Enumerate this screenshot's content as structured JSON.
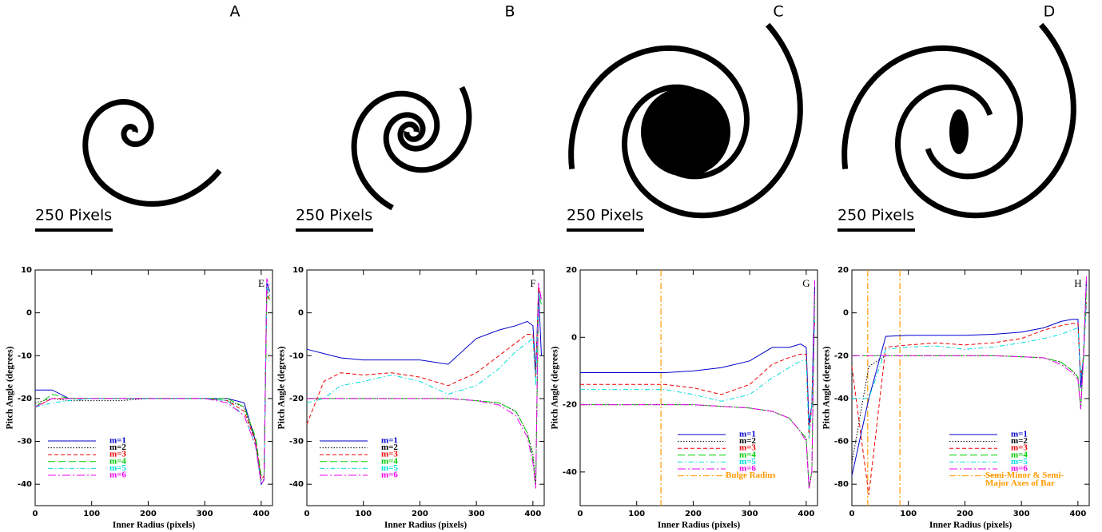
{
  "panels": [
    {
      "label": "A",
      "scale_label": "250 Pixels"
    },
    {
      "label": "B",
      "scale_label": "250 Pixels"
    },
    {
      "label": "C",
      "scale_label": "250 Pixels"
    },
    {
      "label": "D",
      "scale_label": "250 Pixels"
    }
  ],
  "chart_data": [
    {
      "type": "line",
      "label": "E",
      "xlabel": "Inner Radius (pixels)",
      "ylabel": "Pitch Angle (degrees)",
      "xlim": [
        0,
        420
      ],
      "ylim": [
        -45,
        10
      ],
      "xticks": [
        0,
        100,
        200,
        300,
        400
      ],
      "yticks": [
        -40,
        -30,
        -20,
        -10,
        0,
        10
      ],
      "legend": "lower left",
      "x": [
        0,
        30,
        60,
        100,
        150,
        200,
        250,
        300,
        340,
        370,
        390,
        400,
        405,
        410,
        415
      ],
      "series": [
        {
          "name": "m=1",
          "color": "#0000cc",
          "style": "solid",
          "values": [
            -18,
            -18,
            -20,
            -20,
            -20,
            -20,
            -20,
            -20,
            -20,
            -21,
            -30,
            -40,
            -39,
            7,
            5
          ]
        },
        {
          "name": "m=2",
          "color": "#000000",
          "style": "dotted",
          "values": [
            -21,
            -20,
            -20.5,
            -20.5,
            -20.5,
            -20,
            -20,
            -20,
            -20.5,
            -22,
            -30,
            -39,
            -39,
            6,
            4
          ]
        },
        {
          "name": "m=3",
          "color": "#ee0000",
          "style": "dashed",
          "values": [
            -22,
            -20,
            -20,
            -20,
            -20,
            -20,
            -20,
            -20,
            -20.5,
            -23,
            -30,
            -39,
            -38,
            5,
            3
          ]
        },
        {
          "name": "m=4",
          "color": "#00cc00",
          "style": "longdash",
          "values": [
            -22,
            -19,
            -20,
            -20,
            -20,
            -20,
            -20,
            -20,
            -20,
            -22,
            -29,
            -38,
            -38,
            4,
            3
          ]
        },
        {
          "name": "m=5",
          "color": "#00dddd",
          "style": "dashdot",
          "values": [
            -22,
            -21,
            -20.5,
            -20,
            -20,
            -20,
            -20,
            -20,
            -20.5,
            -24,
            -31,
            -40,
            -39,
            6,
            4
          ]
        },
        {
          "name": "m=6",
          "color": "#ee00ee",
          "style": "longdashdot",
          "values": [
            -22,
            -20,
            -20,
            -20,
            -20,
            -20,
            -20,
            -20,
            -21,
            -24,
            -31,
            -40,
            -39,
            8,
            6
          ]
        }
      ]
    },
    {
      "type": "line",
      "label": "F",
      "xlabel": "Inner Radius (pixels)",
      "ylabel": "Pitch Angle (degrees)",
      "xlim": [
        0,
        420
      ],
      "ylim": [
        -45,
        10
      ],
      "xticks": [
        0,
        100,
        200,
        300,
        400
      ],
      "yticks": [
        -40,
        -30,
        -20,
        -10,
        0,
        10
      ],
      "legend": "lower left",
      "x": [
        0,
        30,
        60,
        100,
        150,
        200,
        250,
        300,
        340,
        370,
        390,
        400,
        405,
        410,
        415
      ],
      "series": [
        {
          "name": "m=1",
          "color": "#0000cc",
          "style": "solid",
          "values": [
            -8.5,
            -9.5,
            -10.5,
            -11,
            -11,
            -11,
            -12,
            -6,
            -4,
            -3,
            -2,
            -3,
            -14,
            5,
            -10
          ]
        },
        {
          "name": "m=2",
          "color": "#000000",
          "style": "dotted",
          "values": [
            -20,
            -20,
            -20,
            -20,
            -20,
            -20,
            -20,
            -20.5,
            -21,
            -23,
            -28,
            -33,
            -40,
            5,
            4
          ]
        },
        {
          "name": "m=3",
          "color": "#ee0000",
          "style": "dashed",
          "values": [
            -26,
            -16,
            -14,
            -14.5,
            -14,
            -15,
            -17,
            -14,
            -10,
            -7,
            -5,
            -5,
            -15,
            6,
            3
          ]
        },
        {
          "name": "m=4",
          "color": "#00cc00",
          "style": "longdash",
          "values": [
            -20,
            -20,
            -20,
            -20,
            -20,
            -20,
            -20,
            -20.5,
            -21,
            -23,
            -28,
            -34,
            -41,
            4,
            2
          ]
        },
        {
          "name": "m=5",
          "color": "#00dddd",
          "style": "dashdot",
          "values": [
            -21,
            -20,
            -17,
            -16,
            -14.5,
            -16,
            -19,
            -17,
            -13,
            -9,
            -7,
            -6,
            -17,
            5,
            2
          ]
        },
        {
          "name": "m=6",
          "color": "#ee00ee",
          "style": "longdashdot",
          "values": [
            -20,
            -20,
            -20,
            -20,
            -20,
            -20,
            -20,
            -20.5,
            -21.5,
            -24,
            -29,
            -35,
            -41,
            7,
            3
          ]
        }
      ]
    },
    {
      "type": "line",
      "label": "G",
      "xlabel": "Inner Radius (pixels)",
      "ylabel": "Pitch Angle (degrees)",
      "xlim": [
        0,
        420
      ],
      "ylim": [
        -50,
        20
      ],
      "xticks": [
        0,
        100,
        200,
        300,
        400
      ],
      "yticks": [
        -40,
        -20,
        0,
        20
      ],
      "legend": "lower center",
      "x": [
        0,
        30,
        60,
        100,
        150,
        200,
        250,
        300,
        340,
        370,
        390,
        400,
        405,
        410,
        415
      ],
      "series": [
        {
          "name": "m=1",
          "color": "#0000cc",
          "style": "solid",
          "values": [
            -10.5,
            -10.5,
            -10.5,
            -10.5,
            -10.5,
            -10,
            -9,
            -7,
            -3,
            -3,
            -2,
            -3,
            -26,
            -20,
            15
          ]
        },
        {
          "name": "m=2",
          "color": "#000000",
          "style": "dotted",
          "values": [
            -20,
            -20,
            -20,
            -20,
            -20,
            -20,
            -20.5,
            -21,
            -22,
            -24,
            -28,
            -30,
            -45,
            -40,
            15
          ]
        },
        {
          "name": "m=3",
          "color": "#ee0000",
          "style": "dashed",
          "values": [
            -14,
            -14,
            -14,
            -14,
            -14,
            -15,
            -17,
            -14,
            -8,
            -6,
            -5,
            -5,
            -30,
            -20,
            5
          ]
        },
        {
          "name": "m=4",
          "color": "#00cc00",
          "style": "longdash",
          "values": [
            -20,
            -20,
            -20,
            -20,
            -20,
            -20,
            -20.5,
            -21,
            -22,
            -24,
            -28,
            -30,
            -44,
            -40,
            12
          ]
        },
        {
          "name": "m=5",
          "color": "#00dddd",
          "style": "dashdot",
          "values": [
            -15.5,
            -15.5,
            -15.5,
            -15.5,
            -15.5,
            -17,
            -19,
            -17,
            -12,
            -9,
            -7,
            -7,
            -30,
            -20,
            5
          ]
        },
        {
          "name": "m=6",
          "color": "#ee00ee",
          "style": "longdashdot",
          "values": [
            -20,
            -20,
            -20,
            -20,
            -20,
            -20,
            -20.5,
            -21,
            -22,
            -24,
            -28,
            -31,
            -45,
            -40,
            17
          ]
        }
      ],
      "vlines": [
        {
          "name": "Bulge Radius",
          "color": "#ff9900",
          "x": 143
        }
      ]
    },
    {
      "type": "line",
      "label": "H",
      "xlabel": "Inner Radius (pixels)",
      "ylabel": "Pitch Angle (degrees)",
      "xlim": [
        0,
        420
      ],
      "ylim": [
        -90,
        20
      ],
      "xticks": [
        0,
        100,
        200,
        300,
        400
      ],
      "yticks": [
        -80,
        -60,
        -40,
        -20,
        0,
        20
      ],
      "legend": "lower center",
      "x": [
        0,
        30,
        60,
        100,
        150,
        200,
        250,
        300,
        340,
        370,
        390,
        400,
        405,
        410,
        415
      ],
      "series": [
        {
          "name": "m=1",
          "color": "#0000cc",
          "style": "solid",
          "values": [
            -76,
            -40,
            -11,
            -10.5,
            -10.5,
            -10.5,
            -10,
            -9,
            -7,
            -4,
            -3,
            -3,
            -35,
            -20,
            15
          ]
        },
        {
          "name": "m=2",
          "color": "#000000",
          "style": "dotted",
          "values": [
            -70,
            -25,
            -20,
            -20,
            -20,
            -20,
            -20,
            -20.5,
            -21,
            -23,
            -27,
            -30,
            -45,
            -20,
            15
          ]
        },
        {
          "name": "m=3",
          "color": "#ee0000",
          "style": "dashed",
          "values": [
            -25,
            -85,
            -16,
            -15,
            -14,
            -15,
            -14,
            -12,
            -8,
            -6,
            -5,
            -5,
            -30,
            -20,
            5
          ]
        },
        {
          "name": "m=4",
          "color": "#00cc00",
          "style": "longdash",
          "values": [
            -20,
            -20,
            -20,
            -20,
            -20,
            -20,
            -20,
            -20.5,
            -21,
            -23,
            -27,
            -30,
            -45,
            -20,
            10
          ]
        },
        {
          "name": "m=5",
          "color": "#00dddd",
          "style": "dashdot",
          "values": [
            -40,
            -40,
            -17,
            -16,
            -15.5,
            -17,
            -16,
            -14,
            -12,
            -10,
            -8,
            -7,
            -30,
            -20,
            5
          ]
        },
        {
          "name": "m=6",
          "color": "#ee00ee",
          "style": "longdashdot",
          "values": [
            -20,
            -20,
            -20,
            -20,
            -20,
            -20,
            -20,
            -20.5,
            -21,
            -24,
            -28,
            -31,
            -45,
            -20,
            17
          ]
        }
      ],
      "vlines": [
        {
          "name": [
            "Semi-Minor & Semi-",
            "Major Axes of Bar"
          ],
          "color": "#ff9900",
          "x": 28
        },
        {
          "name": [
            "Semi-Minor & Semi-",
            "Major Axes of Bar"
          ],
          "color": "#ff9900",
          "x": 85
        }
      ]
    }
  ]
}
